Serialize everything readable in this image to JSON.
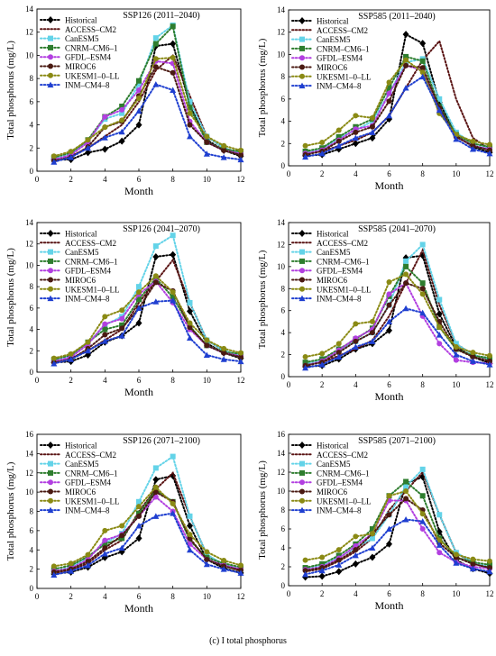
{
  "caption": "(c) I total phosphorus",
  "series_styles": [
    {
      "name": "Historical",
      "color": "#000000",
      "marker": "diamond"
    },
    {
      "name": "ACCESS–CM2",
      "color": "#5a1414",
      "marker": "none"
    },
    {
      "name": "CanESM5",
      "color": "#63d3e8",
      "marker": "square"
    },
    {
      "name": "CNRM–CM6–1",
      "color": "#2e7d2e",
      "marker": "square"
    },
    {
      "name": "GFDL–ESM4",
      "color": "#b23fe0",
      "marker": "circle"
    },
    {
      "name": "MIROC6",
      "color": "#4a1a12",
      "marker": "circle"
    },
    {
      "name": "UKESM1–0–LL",
      "color": "#8a8a14",
      "marker": "circle"
    },
    {
      "name": "INM–CM4–8",
      "color": "#1f3fd0",
      "marker": "triangle"
    }
  ],
  "chart_data": [
    {
      "type": "line",
      "title": "SSP126 (2011–2040)",
      "xlabel": "Month",
      "ylabel": "Total phosphorus (mg/L)",
      "xlim": [
        0,
        12
      ],
      "ylim": [
        0,
        14
      ],
      "xticks": [
        0,
        2,
        4,
        6,
        8,
        10,
        12
      ],
      "yticks": [
        0,
        2,
        4,
        6,
        8,
        10,
        12,
        14
      ],
      "x": [
        1,
        2,
        3,
        4,
        5,
        6,
        7,
        8,
        9,
        10,
        11,
        12
      ],
      "legend_position": "top-left",
      "series": [
        {
          "name": "Historical",
          "values": [
            1.0,
            1.0,
            1.6,
            1.9,
            2.6,
            4.0,
            10.8,
            11.0,
            5.7,
            2.7,
            1.8,
            1.3
          ]
        },
        {
          "name": "ACCESS–CM2",
          "values": [
            1.0,
            1.3,
            2.0,
            3.0,
            4.0,
            6.0,
            8.7,
            10.0,
            6.5,
            3.0,
            2.0,
            1.5
          ]
        },
        {
          "name": "CanESM5",
          "values": [
            1.1,
            1.5,
            2.6,
            4.5,
            5.0,
            7.5,
            11.5,
            12.6,
            6.0,
            3.0,
            2.0,
            1.6
          ]
        },
        {
          "name": "CNRM–CM6–1",
          "values": [
            1.2,
            1.6,
            2.7,
            4.7,
            5.6,
            7.8,
            11.0,
            12.5,
            5.5,
            2.5,
            1.9,
            1.7
          ]
        },
        {
          "name": "GFDL–ESM4",
          "values": [
            1.0,
            1.4,
            2.5,
            4.7,
            5.3,
            7.0,
            9.5,
            9.3,
            4.3,
            2.5,
            1.8,
            1.5
          ]
        },
        {
          "name": "MIROC6",
          "values": [
            0.9,
            1.2,
            2.1,
            3.8,
            4.3,
            6.5,
            9.0,
            8.5,
            4.0,
            2.5,
            1.8,
            1.4
          ]
        },
        {
          "name": "UKESM1–0–LL",
          "values": [
            1.3,
            1.7,
            2.7,
            3.8,
            4.4,
            6.3,
            9.7,
            9.8,
            5.0,
            3.0,
            2.2,
            1.8
          ]
        },
        {
          "name": "INM–CM4–8",
          "values": [
            0.8,
            1.2,
            2.0,
            2.9,
            3.4,
            5.2,
            7.5,
            7.0,
            3.0,
            1.5,
            1.2,
            1.0
          ]
        }
      ]
    },
    {
      "type": "line",
      "title": "SSP585 (2011–2040)",
      "xlabel": "Month",
      "ylabel": "Total phosphorus (mg/L)",
      "xlim": [
        0,
        12
      ],
      "ylim": [
        0,
        14
      ],
      "xticks": [
        0,
        2,
        4,
        6,
        8,
        10,
        12
      ],
      "yticks": [
        0,
        2,
        4,
        6,
        8,
        10,
        12,
        14
      ],
      "x": [
        1,
        2,
        3,
        4,
        5,
        6,
        7,
        8,
        9,
        10,
        11,
        12
      ],
      "legend_position": "top-left",
      "series": [
        {
          "name": "Historical",
          "values": [
            0.9,
            1.0,
            1.5,
            2.0,
            2.5,
            4.2,
            11.8,
            11.0,
            5.7,
            2.7,
            1.7,
            1.2
          ]
        },
        {
          "name": "ACCESS–CM2",
          "values": [
            1.1,
            1.3,
            1.8,
            2.3,
            3.0,
            4.5,
            7.0,
            9.5,
            11.2,
            6.0,
            2.5,
            1.5
          ]
        },
        {
          "name": "CanESM5",
          "values": [
            1.2,
            1.5,
            2.5,
            3.2,
            4.0,
            6.5,
            9.3,
            9.6,
            6.0,
            3.0,
            2.0,
            1.6
          ]
        },
        {
          "name": "CNRM–CM6–1",
          "values": [
            1.3,
            1.6,
            2.6,
            3.5,
            4.2,
            7.0,
            9.8,
            9.4,
            5.3,
            2.8,
            2.0,
            1.7
          ]
        },
        {
          "name": "GFDL–ESM4",
          "values": [
            1.1,
            1.4,
            2.3,
            3.3,
            3.6,
            6.5,
            9.0,
            8.6,
            5.0,
            2.6,
            1.8,
            1.5
          ]
        },
        {
          "name": "MIROC6",
          "values": [
            1.0,
            1.3,
            2.2,
            3.0,
            3.5,
            5.8,
            9.0,
            8.8,
            5.2,
            2.6,
            1.8,
            1.4
          ]
        },
        {
          "name": "UKESM1–0–LL",
          "values": [
            1.8,
            2.1,
            3.2,
            4.5,
            4.3,
            7.5,
            9.5,
            8.4,
            4.7,
            2.8,
            2.2,
            1.9
          ]
        },
        {
          "name": "INM–CM4–8",
          "values": [
            0.8,
            1.1,
            1.8,
            2.5,
            3.0,
            4.5,
            7.0,
            8.0,
            5.0,
            2.4,
            1.5,
            1.1
          ]
        }
      ]
    },
    {
      "type": "line",
      "title": "SSP126 (2041–2070)",
      "xlabel": "Month",
      "ylabel": "Total phosphorus (mg/L)",
      "xlim": [
        0,
        12
      ],
      "ylim": [
        0,
        14
      ],
      "xticks": [
        0,
        2,
        4,
        6,
        8,
        10,
        12
      ],
      "yticks": [
        0,
        2,
        4,
        6,
        8,
        10,
        12,
        14
      ],
      "x": [
        1,
        2,
        3,
        4,
        5,
        6,
        7,
        8,
        9,
        10,
        11,
        12
      ],
      "legend_position": "top-left",
      "series": [
        {
          "name": "Historical",
          "values": [
            0.9,
            1.0,
            1.6,
            2.8,
            3.4,
            4.6,
            10.8,
            11.0,
            5.7,
            2.7,
            1.8,
            1.3
          ]
        },
        {
          "name": "ACCESS–CM2",
          "values": [
            1.0,
            1.3,
            2.0,
            3.0,
            4.0,
            6.5,
            8.5,
            10.5,
            6.5,
            3.0,
            2.0,
            1.5
          ]
        },
        {
          "name": "CanESM5",
          "values": [
            1.1,
            1.5,
            2.7,
            4.4,
            5.2,
            8.0,
            11.8,
            12.8,
            6.5,
            3.0,
            2.0,
            1.6
          ]
        },
        {
          "name": "CNRM–CM6–1",
          "values": [
            1.2,
            1.6,
            2.8,
            4.0,
            4.4,
            6.8,
            8.8,
            7.0,
            4.3,
            2.5,
            1.9,
            1.7
          ]
        },
        {
          "name": "GFDL–ESM4",
          "values": [
            1.0,
            1.4,
            2.6,
            4.5,
            5.0,
            7.3,
            8.5,
            6.5,
            4.0,
            2.5,
            1.8,
            1.5
          ]
        },
        {
          "name": "MIROC6",
          "values": [
            0.9,
            1.2,
            2.2,
            3.5,
            4.1,
            6.0,
            8.4,
            7.6,
            4.2,
            2.5,
            1.8,
            1.4
          ]
        },
        {
          "name": "UKESM1–0–LL",
          "values": [
            1.3,
            1.7,
            2.8,
            5.2,
            5.8,
            7.5,
            9.0,
            7.5,
            4.6,
            3.0,
            2.2,
            1.8
          ]
        },
        {
          "name": "INM–CM4–8",
          "values": [
            0.8,
            1.2,
            2.0,
            2.9,
            3.4,
            6.0,
            6.6,
            6.7,
            3.2,
            1.6,
            1.2,
            1.0
          ]
        }
      ]
    },
    {
      "type": "line",
      "title": "SSP585 (2041–2070)",
      "xlabel": "Month",
      "ylabel": "Total phosphorus (mg/L)",
      "xlim": [
        0,
        12
      ],
      "ylim": [
        0,
        14
      ],
      "xticks": [
        0,
        2,
        4,
        6,
        8,
        10,
        12
      ],
      "yticks": [
        0,
        2,
        4,
        6,
        8,
        10,
        12,
        14
      ],
      "x": [
        1,
        2,
        3,
        4,
        5,
        6,
        7,
        8,
        9,
        10,
        11,
        12
      ],
      "legend_position": "top-left",
      "series": [
        {
          "name": "Historical",
          "values": [
            0.9,
            1.0,
            1.6,
            2.5,
            3.0,
            4.2,
            10.8,
            11.0,
            5.7,
            2.7,
            1.8,
            1.2
          ]
        },
        {
          "name": "ACCESS–CM2",
          "values": [
            1.1,
            1.3,
            1.9,
            2.5,
            3.3,
            5.5,
            8.5,
            11.5,
            6.5,
            3.0,
            2.0,
            1.5
          ]
        },
        {
          "name": "CanESM5",
          "values": [
            1.2,
            1.5,
            2.4,
            3.2,
            4.0,
            6.5,
            10.5,
            12.0,
            7.0,
            3.0,
            2.0,
            1.6
          ]
        },
        {
          "name": "CNRM–CM6–1",
          "values": [
            1.3,
            1.6,
            2.5,
            3.4,
            4.4,
            7.3,
            10.0,
            8.5,
            4.5,
            2.5,
            1.9,
            1.7
          ]
        },
        {
          "name": "GFDL–ESM4",
          "values": [
            1.0,
            1.4,
            2.4,
            3.5,
            4.3,
            7.5,
            8.5,
            5.5,
            3.0,
            1.5,
            1.3,
            1.2
          ]
        },
        {
          "name": "MIROC6",
          "values": [
            1.0,
            1.3,
            2.2,
            3.2,
            4.0,
            6.5,
            8.5,
            8.0,
            5.0,
            2.5,
            1.8,
            1.4
          ]
        },
        {
          "name": "UKESM1–0–LL",
          "values": [
            1.8,
            2.1,
            3.0,
            4.8,
            5.0,
            8.6,
            9.3,
            7.5,
            4.5,
            2.7,
            2.2,
            1.9
          ]
        },
        {
          "name": "INM–CM4–8",
          "values": [
            0.8,
            1.1,
            1.8,
            2.7,
            3.2,
            5.0,
            6.2,
            5.8,
            3.8,
            2.0,
            1.4,
            1.1
          ]
        }
      ]
    },
    {
      "type": "line",
      "title": "SSP126 (2071–2100)",
      "xlabel": "Month",
      "ylabel": "Total phosphorus (mg/L)",
      "xlim": [
        0,
        12
      ],
      "ylim": [
        0,
        16
      ],
      "xticks": [
        0,
        2,
        4,
        6,
        8,
        10,
        12
      ],
      "yticks": [
        0,
        2,
        4,
        6,
        8,
        10,
        12,
        14,
        16
      ],
      "x": [
        1,
        2,
        3,
        4,
        5,
        6,
        7,
        8,
        9,
        10,
        11,
        12
      ],
      "legend_position": "top-left",
      "series": [
        {
          "name": "Historical",
          "values": [
            1.5,
            1.7,
            2.2,
            3.2,
            3.8,
            5.2,
            11.3,
            11.7,
            6.5,
            3.0,
            2.1,
            1.6
          ]
        },
        {
          "name": "ACCESS–CM2",
          "values": [
            1.6,
            1.9,
            2.6,
            4.0,
            5.0,
            8.0,
            10.3,
            12.0,
            7.5,
            3.5,
            2.4,
            1.8
          ]
        },
        {
          "name": "CanESM5",
          "values": [
            1.8,
            2.2,
            3.2,
            4.7,
            5.7,
            9.0,
            12.5,
            13.7,
            7.5,
            3.5,
            2.5,
            2.0
          ]
        },
        {
          "name": "CNRM–CM6–1",
          "values": [
            2.0,
            2.4,
            3.3,
            4.6,
            5.2,
            7.8,
            10.2,
            9.0,
            5.0,
            3.2,
            2.6,
            2.2
          ]
        },
        {
          "name": "GFDL–ESM4",
          "values": [
            1.8,
            2.1,
            3.0,
            5.0,
            5.6,
            7.5,
            9.5,
            8.0,
            4.6,
            3.0,
            2.4,
            2.0
          ]
        },
        {
          "name": "MIROC6",
          "values": [
            1.7,
            2.0,
            2.8,
            4.2,
            5.5,
            7.5,
            10.0,
            9.0,
            5.2,
            3.0,
            2.3,
            1.9
          ]
        },
        {
          "name": "UKESM1–0–LL",
          "values": [
            2.3,
            2.6,
            3.5,
            6.0,
            6.5,
            8.5,
            10.5,
            8.8,
            5.6,
            3.8,
            2.9,
            2.4
          ]
        },
        {
          "name": "INM–CM4–8",
          "values": [
            1.4,
            1.8,
            2.4,
            3.6,
            4.2,
            6.5,
            7.5,
            7.8,
            4.0,
            2.5,
            2.0,
            1.6
          ]
        }
      ]
    },
    {
      "type": "line",
      "title": "SSP585 (2071–2100)",
      "xlabel": "Month",
      "ylabel": "Total phosphorus (mg/L)",
      "xlim": [
        0,
        12
      ],
      "ylim": [
        0,
        16
      ],
      "xticks": [
        0,
        2,
        4,
        6,
        8,
        10,
        12
      ],
      "yticks": [
        0,
        2,
        4,
        6,
        8,
        10,
        12,
        14,
        16
      ],
      "x": [
        1,
        2,
        3,
        4,
        5,
        6,
        7,
        8,
        9,
        10,
        11,
        12
      ],
      "legend_position": "top-left",
      "series": [
        {
          "name": "Historical",
          "values": [
            0.9,
            1.0,
            1.5,
            2.3,
            3.0,
            4.4,
            10.8,
            11.5,
            5.7,
            2.7,
            1.8,
            1.3
          ]
        },
        {
          "name": "ACCESS–CM2",
          "values": [
            1.5,
            1.8,
            2.6,
            3.6,
            5.0,
            8.0,
            10.0,
            12.0,
            7.5,
            3.5,
            2.4,
            1.8
          ]
        },
        {
          "name": "CanESM5",
          "values": [
            1.8,
            2.2,
            3.0,
            4.0,
            5.0,
            7.5,
            10.5,
            12.3,
            7.5,
            3.5,
            2.5,
            2.0
          ]
        },
        {
          "name": "CNRM–CM6–1",
          "values": [
            1.9,
            2.3,
            3.2,
            4.4,
            6.0,
            9.5,
            11.0,
            9.5,
            5.0,
            3.0,
            2.5,
            2.2
          ]
        },
        {
          "name": "GFDL–ESM4",
          "values": [
            1.7,
            2.0,
            2.9,
            4.2,
            5.5,
            9.0,
            9.0,
            6.0,
            3.5,
            2.5,
            2.0,
            1.8
          ]
        },
        {
          "name": "MIROC6",
          "values": [
            1.6,
            1.9,
            2.7,
            3.8,
            5.5,
            7.5,
            9.2,
            8.0,
            4.5,
            3.0,
            2.3,
            1.9
          ]
        },
        {
          "name": "UKESM1–0–LL",
          "values": [
            2.7,
            3.0,
            3.8,
            5.2,
            5.5,
            9.5,
            10.0,
            7.6,
            4.8,
            3.3,
            2.8,
            2.6
          ]
        },
        {
          "name": "INM–CM4–8",
          "values": [
            1.2,
            1.6,
            2.2,
            3.2,
            4.0,
            6.0,
            7.0,
            6.8,
            4.3,
            2.4,
            1.8,
            1.5
          ]
        }
      ]
    }
  ]
}
